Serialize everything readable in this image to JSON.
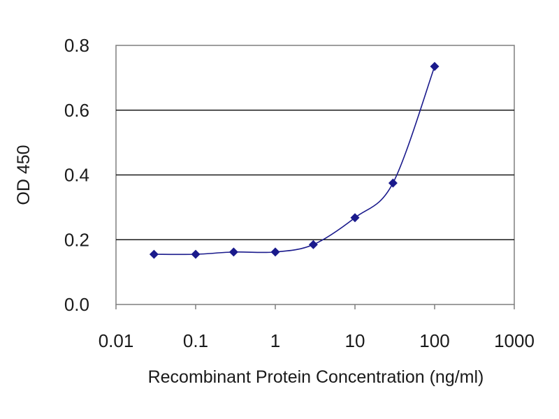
{
  "chart_data": {
    "type": "line",
    "title": "",
    "xlabel": "Recombinant Protein Concentration (ng/ml)",
    "ylabel": "OD 450",
    "x_scale": "log",
    "xlim": [
      0.01,
      1000
    ],
    "ylim": [
      0.0,
      0.8
    ],
    "x_ticks": [
      "0.01",
      "0.1",
      "1",
      "10",
      "100",
      "1000"
    ],
    "y_ticks": [
      "0.0",
      "0.2",
      "0.4",
      "0.6",
      "0.8"
    ],
    "y_tick_values": [
      0.0,
      0.2,
      0.4,
      0.6,
      0.8
    ],
    "x_tick_values": [
      0.01,
      0.1,
      1,
      10,
      100,
      1000
    ],
    "grid": "horizontal",
    "legend": "none",
    "series": [
      {
        "color": "#1a1a8c",
        "marker": "diamond",
        "points": [
          {
            "x": 0.03,
            "y": 0.155
          },
          {
            "x": 0.1,
            "y": 0.155
          },
          {
            "x": 0.3,
            "y": 0.162
          },
          {
            "x": 1,
            "y": 0.162
          },
          {
            "x": 3,
            "y": 0.185
          },
          {
            "x": 10,
            "y": 0.268
          },
          {
            "x": 30,
            "y": 0.375
          },
          {
            "x": 100,
            "y": 0.735
          }
        ]
      }
    ]
  }
}
